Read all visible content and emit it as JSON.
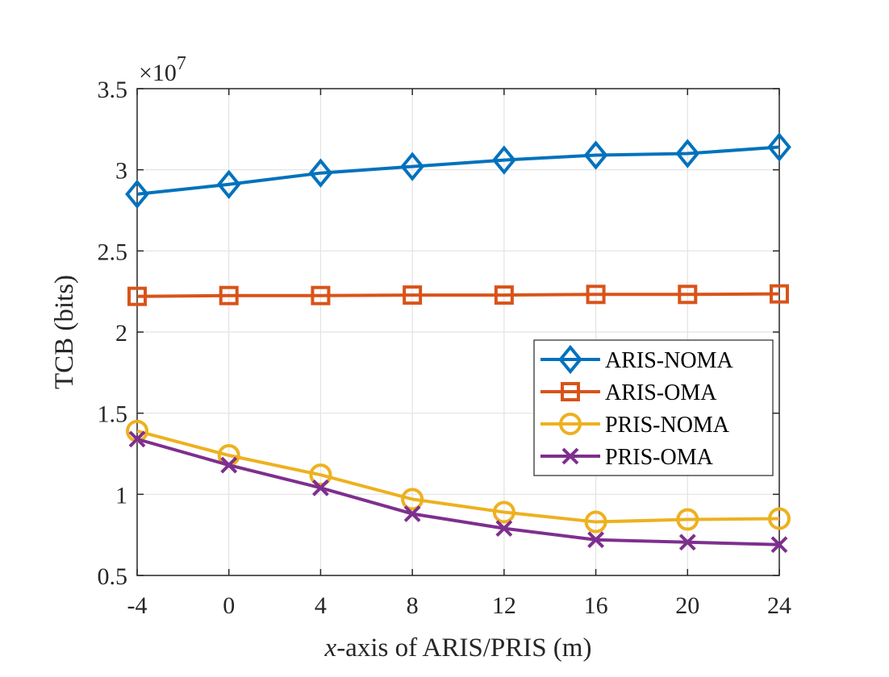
{
  "chart_data": {
    "type": "line",
    "x": [
      -4,
      0,
      4,
      8,
      12,
      16,
      20,
      24
    ],
    "x_tick_labels": [
      "-4",
      "0",
      "4",
      "8",
      "12",
      "16",
      "20",
      "24"
    ],
    "y_tick_values": [
      0.5,
      1,
      1.5,
      2,
      2.5,
      3,
      3.5
    ],
    "y_tick_labels": [
      "0.5",
      "1",
      "1.5",
      "2",
      "2.5",
      "3",
      "3.5"
    ],
    "xlim": [
      -4,
      24
    ],
    "ylim": [
      0.5,
      3.5
    ],
    "y_multiplier": {
      "base": "×10",
      "exponent": "7"
    },
    "xlabel": {
      "italic": "x",
      "rest": "-axis of ARIS/PRIS (m)"
    },
    "ylabel": "TCB (bits)",
    "grid": true,
    "legend_position": "right, slightly below middle",
    "series": [
      {
        "name": "ARIS-NOMA",
        "color": "#0072BD",
        "marker": "diamond",
        "values": [
          2.85,
          2.91,
          2.98,
          3.02,
          3.06,
          3.09,
          3.1,
          3.14
        ]
      },
      {
        "name": "ARIS-OMA",
        "color": "#D95319",
        "marker": "square",
        "values": [
          2.22,
          2.225,
          2.225,
          2.228,
          2.228,
          2.232,
          2.232,
          2.235
        ]
      },
      {
        "name": "PRIS-NOMA",
        "color": "#EDB120",
        "marker": "circle",
        "values": [
          1.39,
          1.24,
          1.12,
          0.97,
          0.89,
          0.83,
          0.845,
          0.85
        ]
      },
      {
        "name": "PRIS-OMA",
        "color": "#7E2F8E",
        "marker": "x",
        "values": [
          1.34,
          1.18,
          1.04,
          0.88,
          0.79,
          0.72,
          0.705,
          0.69
        ]
      }
    ]
  }
}
